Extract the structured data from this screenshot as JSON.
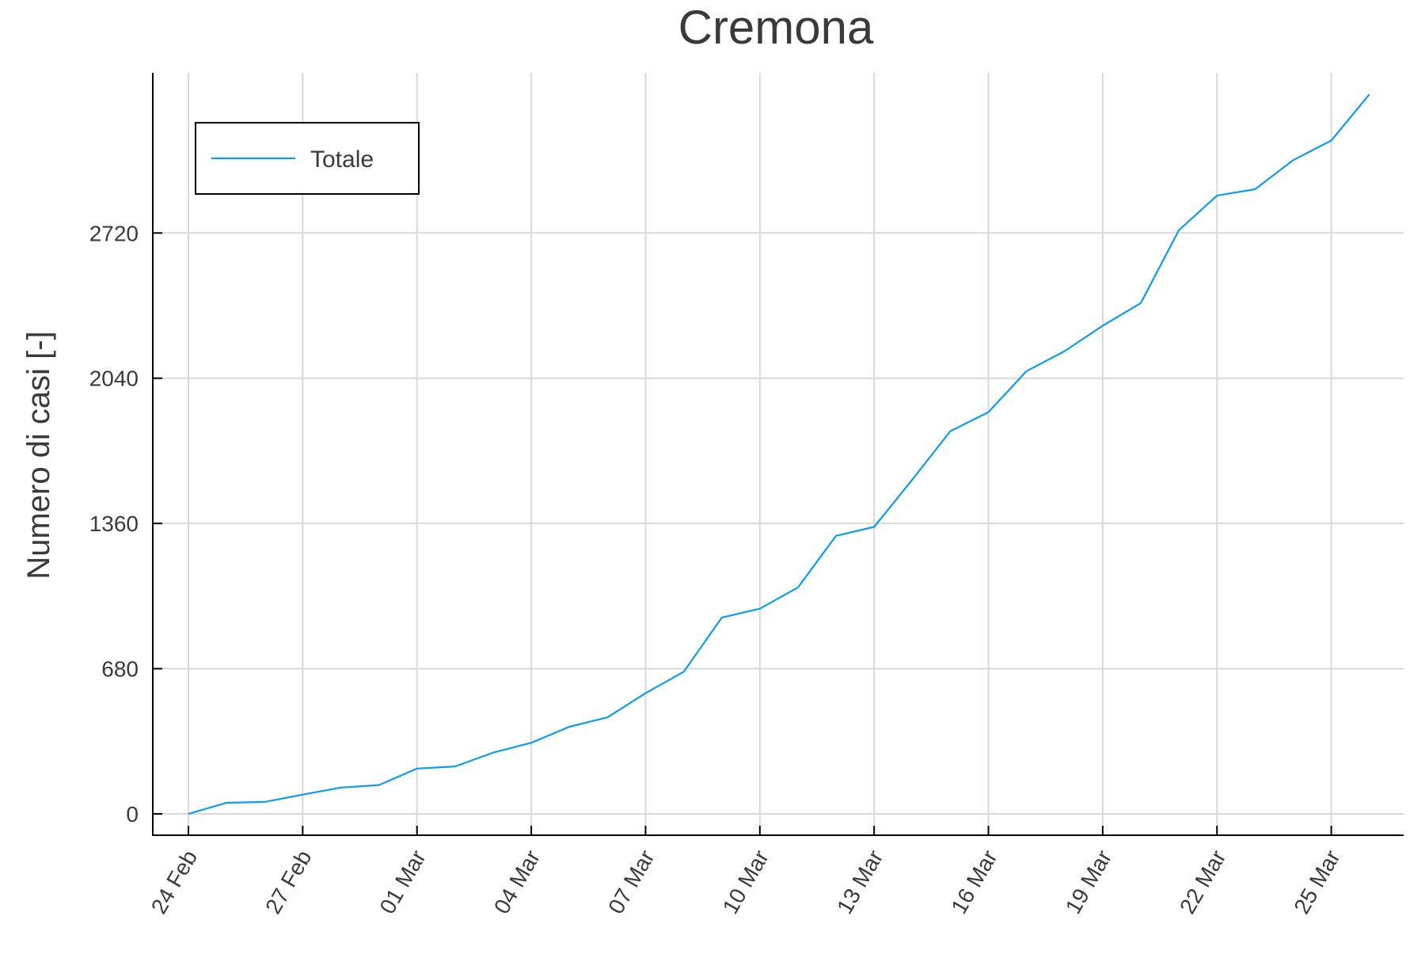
{
  "chart_data": {
    "type": "line",
    "title": "Cremona",
    "xlabel": "",
    "ylabel": "Numero di casi [-]",
    "x": [
      "24 Feb",
      "25 Feb",
      "26 Feb",
      "27 Feb",
      "28 Feb",
      "29 Feb",
      "01 Mar",
      "02 Mar",
      "03 Mar",
      "04 Mar",
      "05 Mar",
      "06 Mar",
      "07 Mar",
      "08 Mar",
      "09 Mar",
      "10 Mar",
      "11 Mar",
      "12 Mar",
      "13 Mar",
      "14 Mar",
      "15 Mar",
      "16 Mar",
      "17 Mar",
      "18 Mar",
      "19 Mar",
      "20 Mar",
      "21 Mar",
      "22 Mar",
      "23 Mar",
      "24 Mar",
      "25 Mar",
      "26 Mar"
    ],
    "x_ticks": [
      "24 Feb",
      "27 Feb",
      "01 Mar",
      "04 Mar",
      "07 Mar",
      "10 Mar",
      "13 Mar",
      "16 Mar",
      "19 Mar",
      "22 Mar",
      "25 Mar"
    ],
    "y_ticks": [
      0,
      680,
      1360,
      2040,
      2720
    ],
    "ylim": [
      -100,
      3470
    ],
    "grid": true,
    "legend_position": "top-left",
    "series": [
      {
        "name": "Totale",
        "color": "#0f9bef",
        "values": [
          0,
          52,
          56,
          90,
          123,
          135,
          212,
          222,
          287,
          333,
          408,
          452,
          565,
          665,
          919,
          961,
          1060,
          1302,
          1344,
          1565,
          1792,
          1881,
          2073,
          2167,
          2286,
          2392,
          2733,
          2895,
          2925,
          3061,
          3153,
          3369
        ]
      }
    ]
  }
}
